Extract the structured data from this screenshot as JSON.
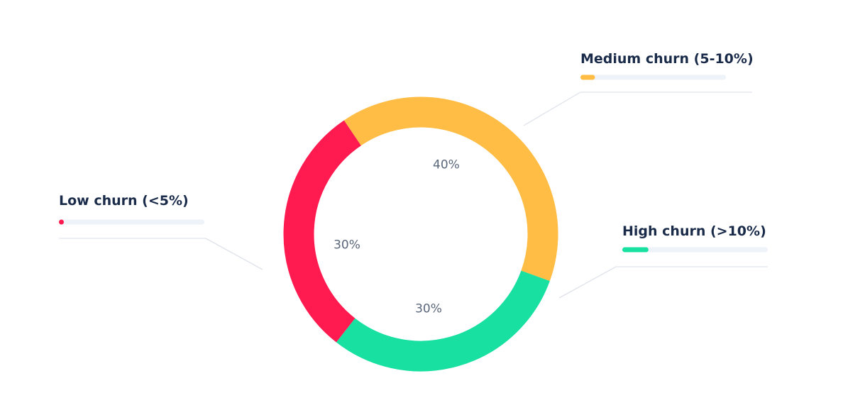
{
  "chart_data": {
    "type": "pie",
    "title": "",
    "categories": [
      "Medium churn (5-10%)",
      "High churn (>10%)",
      "Low churn (<5%)"
    ],
    "values": [
      40,
      30,
      30
    ],
    "value_labels": [
      "40%",
      "30%",
      "30%"
    ],
    "colors": [
      "#ffbd45",
      "#17e0a1",
      "#ff1a4f"
    ],
    "legend_bar_fill": [
      0.1,
      0.18,
      0.03
    ],
    "legend_bar_track_color": "#eef2f9",
    "leader_line_color": "#dfe3ea",
    "legend_placement": "around-chart",
    "donut": true
  }
}
